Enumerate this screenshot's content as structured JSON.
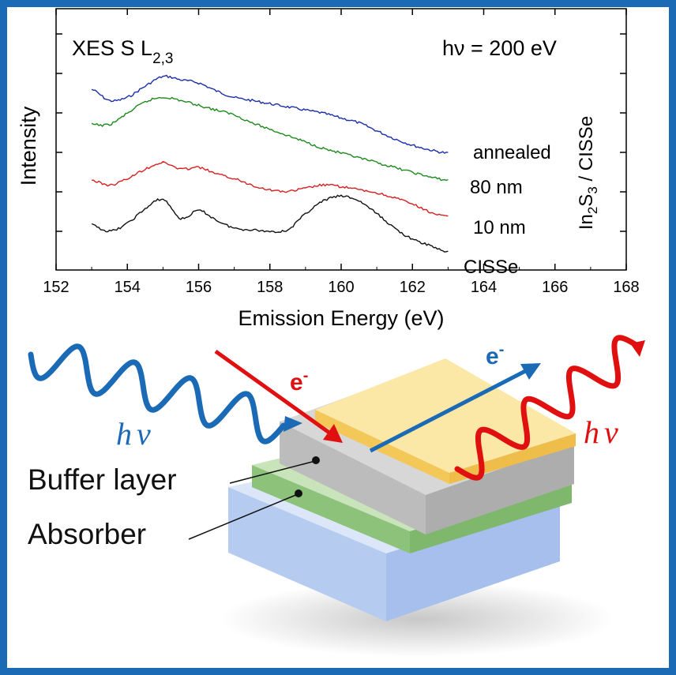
{
  "chart_data": {
    "type": "line",
    "title": "XES S L",
    "title_subscript": "2,3",
    "annotation": {
      "prefix": "h",
      "symbol": "ν",
      "text": " = 200 eV"
    },
    "xlabel": "Emission Energy (eV)",
    "ylabel": "Intensity",
    "right_label": {
      "a": "In",
      "a_sub": "2",
      "b": "S",
      "b_sub": "3",
      "c": " / CISSe"
    },
    "xlim": [
      152,
      168
    ],
    "xticks": [
      152,
      154,
      156,
      158,
      160,
      162,
      164,
      166,
      168
    ],
    "x": [
      153.0,
      153.5,
      154.0,
      154.5,
      155.0,
      155.5,
      156.0,
      156.5,
      157.0,
      157.5,
      158.0,
      158.5,
      159.0,
      159.5,
      160.0,
      160.5,
      161.0,
      161.5,
      162.0,
      162.5,
      163.0
    ],
    "series": [
      {
        "name": "annealed",
        "color": "#1a2ea8",
        "values": [
          9.1,
          8.4,
          8.6,
          9.3,
          9.9,
          9.7,
          9.5,
          9.0,
          8.6,
          8.4,
          8.2,
          8.0,
          7.8,
          7.6,
          7.3,
          7.0,
          6.5,
          6.0,
          5.6,
          5.3,
          5.1
        ]
      },
      {
        "name": "80 nm",
        "color": "#1e8a1e",
        "values": [
          6.9,
          6.9,
          7.6,
          8.3,
          8.6,
          8.4,
          8.1,
          7.8,
          7.5,
          7.0,
          6.6,
          6.2,
          5.8,
          5.4,
          5.1,
          4.8,
          4.5,
          4.2,
          3.9,
          3.6,
          3.4
        ]
      },
      {
        "name": "10 nm",
        "color": "#d62020",
        "values": [
          3.4,
          3.1,
          3.5,
          4.1,
          4.5,
          4.1,
          4.2,
          3.8,
          3.5,
          3.1,
          2.8,
          2.7,
          2.9,
          3.1,
          3.0,
          2.8,
          2.6,
          2.3,
          1.9,
          1.4,
          1.1
        ]
      },
      {
        "name": "CISSe",
        "color": "#111111",
        "values": [
          0.6,
          0.2,
          0.7,
          1.6,
          2.2,
          1.0,
          1.5,
          0.9,
          0.4,
          0.3,
          0.2,
          0.3,
          1.3,
          2.1,
          2.4,
          2.1,
          1.3,
          0.4,
          -0.3,
          -0.7,
          -1.1
        ]
      }
    ],
    "grid": false,
    "legend": "right, as colored text labels"
  },
  "diagram": {
    "electron": "e",
    "electron_superscript": "-",
    "photon_h": "h",
    "photon_nu": "ν",
    "label_buffer": "Buffer layer",
    "label_absorber": "Absorber",
    "colors": {
      "frame": "#1a6ab5",
      "wave_in": "#1a6ab5",
      "wave_out": "#e01010",
      "electron_in": "#e01010",
      "electron_out": "#1a6ab5",
      "top_layer": "#f5c860",
      "buffer_layer": "#c8c8c8",
      "absorber_layer": "#8cc27a",
      "substrate": "#aec6ee"
    }
  }
}
